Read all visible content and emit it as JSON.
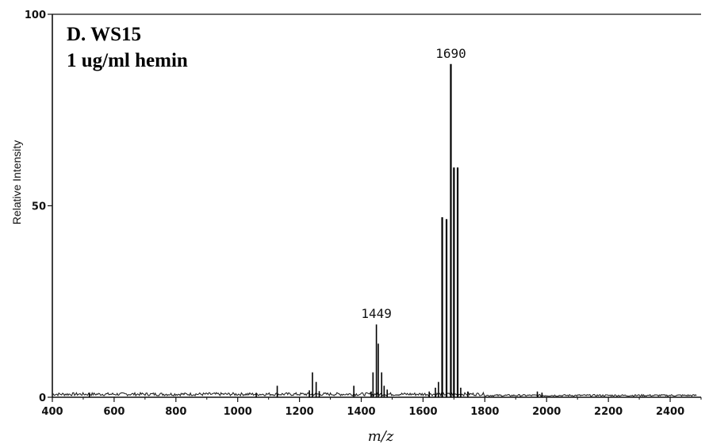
{
  "chart_data": {
    "type": "line",
    "title_lines": [
      "D. WS15",
      "1 ug/ml hemin"
    ],
    "xlabel": "m/z",
    "ylabel": "Relative Intensity",
    "xlim": [
      400,
      2500
    ],
    "ylim": [
      0,
      100
    ],
    "xticks": [
      400,
      600,
      800,
      1000,
      1200,
      1400,
      1600,
      1800,
      2000,
      2200,
      2400
    ],
    "yticks": [
      0,
      50,
      100
    ],
    "grid": false,
    "legend": "none",
    "baseline": 0.8,
    "peaks": [
      {
        "x": 520,
        "y": 1.2
      },
      {
        "x": 1060,
        "y": 1.0
      },
      {
        "x": 1128,
        "y": 3.0
      },
      {
        "x": 1232,
        "y": 1.8
      },
      {
        "x": 1242,
        "y": 6.5
      },
      {
        "x": 1254,
        "y": 4.0
      },
      {
        "x": 1264,
        "y": 1.6
      },
      {
        "x": 1376,
        "y": 3.0
      },
      {
        "x": 1432,
        "y": 1.5
      },
      {
        "x": 1438,
        "y": 6.5
      },
      {
        "x": 1449,
        "y": 19.0
      },
      {
        "x": 1455,
        "y": 14.0
      },
      {
        "x": 1466,
        "y": 6.5
      },
      {
        "x": 1474,
        "y": 3.0
      },
      {
        "x": 1484,
        "y": 2.0
      },
      {
        "x": 1620,
        "y": 1.5
      },
      {
        "x": 1640,
        "y": 2.5
      },
      {
        "x": 1650,
        "y": 4.0
      },
      {
        "x": 1662,
        "y": 47.0
      },
      {
        "x": 1676,
        "y": 46.5
      },
      {
        "x": 1690,
        "y": 87.0
      },
      {
        "x": 1700,
        "y": 60.0
      },
      {
        "x": 1712,
        "y": 60.0
      },
      {
        "x": 1722,
        "y": 2.5
      },
      {
        "x": 1745,
        "y": 1.5
      },
      {
        "x": 1970,
        "y": 1.5
      },
      {
        "x": 1985,
        "y": 1.2
      }
    ],
    "annotations": [
      {
        "text": "1690",
        "x": 1690,
        "y": 87.0
      },
      {
        "text": "1449",
        "x": 1449,
        "y": 19.0
      }
    ]
  }
}
